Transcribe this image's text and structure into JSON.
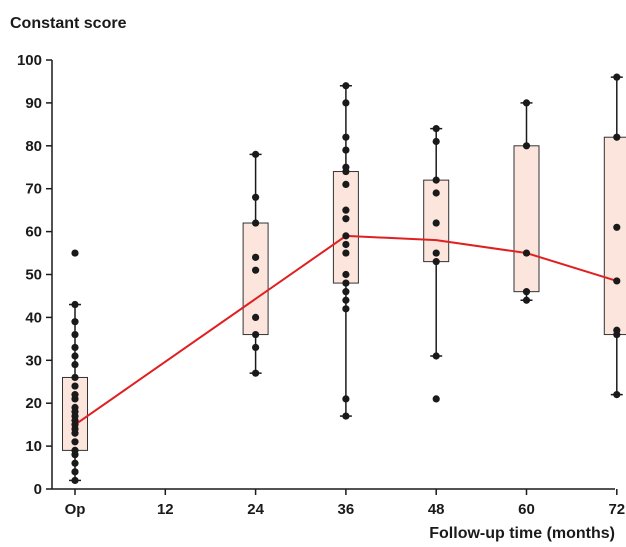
{
  "chart_data": {
    "type": "box-scatter",
    "title": "",
    "ylabel": "Constant score",
    "xlabel": "Follow-up time (months)",
    "ylim": [
      0,
      100
    ],
    "yticks": [
      0,
      10,
      20,
      30,
      40,
      50,
      60,
      70,
      80,
      90,
      100
    ],
    "categories": [
      "Op",
      "12",
      "24",
      "36",
      "48",
      "60",
      "72"
    ],
    "box_fill": "#fce5dc",
    "box_stroke": "#333333",
    "point_color": "#1a1a1a",
    "mean_line_color": "#e02020",
    "groups": [
      {
        "category": "Op",
        "min": 2,
        "q1": 9,
        "median": 15,
        "q3": 26,
        "max": 43,
        "points": [
          55,
          43,
          39,
          36,
          33,
          31,
          29,
          26,
          24,
          22,
          21,
          19,
          18,
          17,
          16,
          15,
          14,
          13,
          11,
          9,
          8,
          6,
          4,
          2
        ]
      },
      {
        "category": "24",
        "min": 27,
        "q1": 36,
        "median": 51,
        "q3": 62,
        "max": 78,
        "points": [
          78,
          68,
          62,
          54,
          51,
          40,
          36,
          33,
          27
        ]
      },
      {
        "category": "36",
        "min": 17,
        "q1": 48,
        "median": 57,
        "q3": 74,
        "max": 94,
        "points": [
          94,
          90,
          82,
          79,
          75,
          74,
          71,
          65,
          63,
          59,
          57,
          55,
          50,
          48,
          46,
          44,
          42,
          21,
          17
        ]
      },
      {
        "category": "48",
        "min": 31,
        "q1": 53,
        "median": 62,
        "q3": 72,
        "max": 84,
        "points": [
          84,
          81,
          72,
          69,
          62,
          55,
          53,
          31,
          21
        ]
      },
      {
        "category": "60",
        "min": 44,
        "q1": 46,
        "median": 55,
        "q3": 80,
        "max": 90,
        "points": [
          90,
          80,
          55,
          46,
          44
        ]
      },
      {
        "category": "72",
        "min": 22,
        "q1": 36,
        "median": 48,
        "q3": 82,
        "max": 96,
        "points": [
          96,
          82,
          61,
          48.5,
          37,
          36,
          22
        ]
      }
    ],
    "mean_line": {
      "x": [
        "Op",
        "36",
        "48",
        "60",
        "72"
      ],
      "y": [
        15,
        59,
        58,
        55,
        48.5
      ]
    }
  }
}
